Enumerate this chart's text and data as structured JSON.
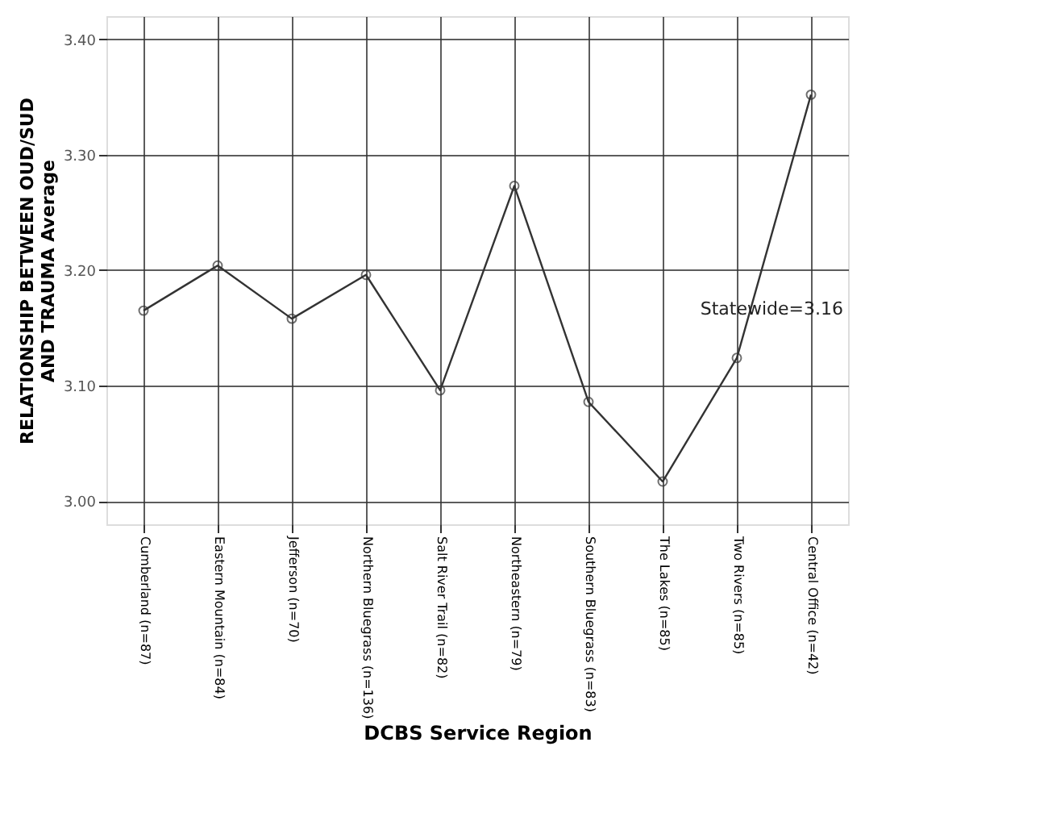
{
  "chart_data": {
    "type": "line",
    "xlabel": "DCBS Service Region",
    "ylabel": "RELATIONSHIP BETWEEN OUD/SUD\nAND TRAUMA Average",
    "categories": [
      "Cumberland (n=87)",
      "Eastern Mountain (n=84)",
      "Jefferson (n=70)",
      "Northern Bluegrass (n=136)",
      "Salt River Trail (n=82)",
      "Northeastern (n=79)",
      "Southern Bluegrass (n=83)",
      "The Lakes (n=85)",
      "Two Rivers (n=85)",
      "Central Office (n=42)"
    ],
    "series": [
      {
        "color": "#333333",
        "values": [
          3.165,
          3.204,
          3.158,
          3.196,
          3.096,
          3.273,
          3.086,
          3.017,
          3.124,
          3.352
        ]
      }
    ],
    "ylim": [
      2.98,
      3.42
    ],
    "yticks": [
      {
        "value": 3.0,
        "label": "3.00"
      },
      {
        "value": 3.1,
        "label": "3.10"
      },
      {
        "value": 3.2,
        "label": "3.20"
      },
      {
        "value": 3.3,
        "label": "3.30"
      },
      {
        "value": 3.4,
        "label": "3.40"
      }
    ],
    "annotations": [
      "Statewide=3.16"
    ],
    "grid": true,
    "marker": "circle",
    "line_style": "solid"
  }
}
